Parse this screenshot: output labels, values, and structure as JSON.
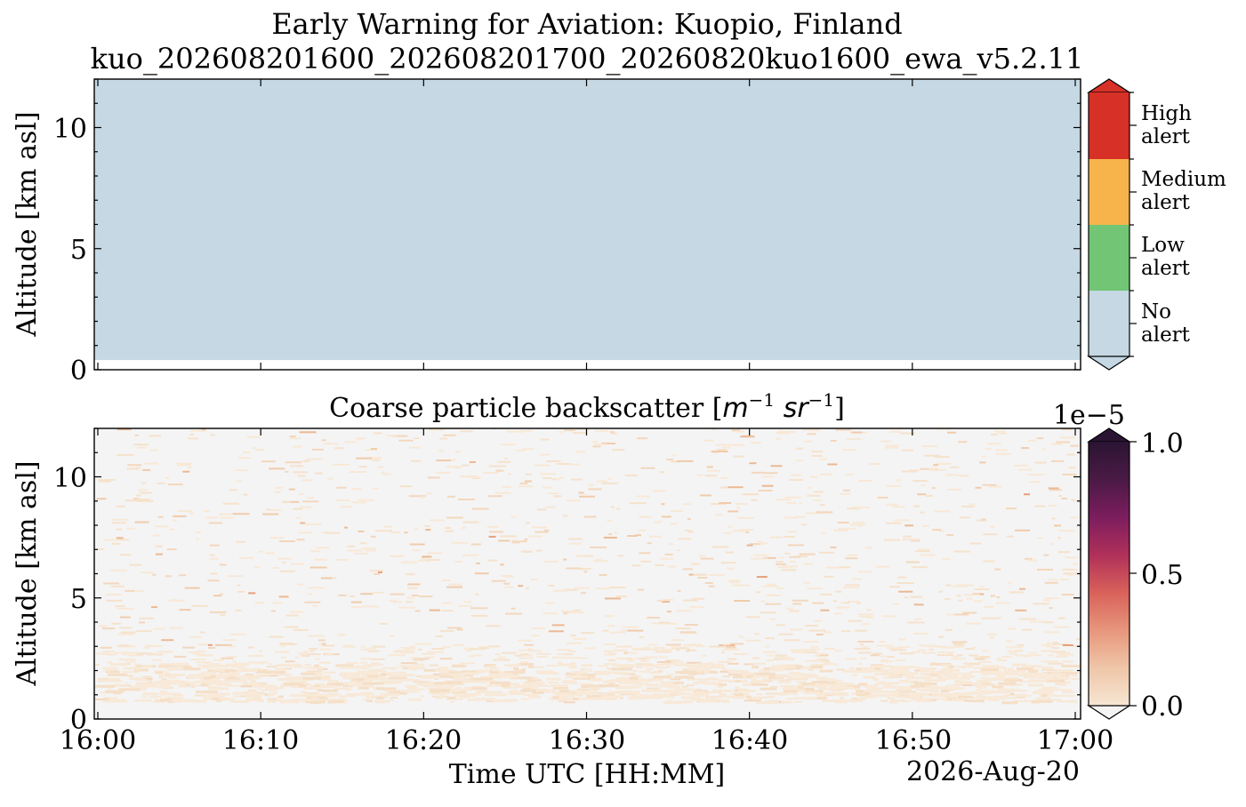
{
  "figure": {
    "title_line1": "Early Warning for Aviation: Kuopio, Finland",
    "title_line2": "kuo_202608201600_202608201700_20260820kuo1600_ewa_v5.2.11"
  },
  "chart_data": [
    {
      "type": "heatmap",
      "title": "",
      "xlabel": "",
      "ylabel": "Altitude [km asl]",
      "xlim": [
        "16:00",
        "17:00"
      ],
      "ylim": [
        0,
        12
      ],
      "yticks": [
        "0",
        "5",
        "10"
      ],
      "field": "alert level",
      "value": "No alert everywhere above ~0.4 km asl",
      "valid_from_km": 0.4,
      "colorbar": {
        "type": "categorical",
        "levels": [
          {
            "label_line1": "No",
            "label_line2": "alert",
            "color": "#c5d8e3"
          },
          {
            "label_line1": "Low",
            "label_line2": "alert",
            "color": "#72c575"
          },
          {
            "label_line1": "Medium",
            "label_line2": "alert",
            "color": "#f6b44b"
          },
          {
            "label_line1": "High",
            "label_line2": "alert",
            "color": "#d73027"
          }
        ]
      }
    },
    {
      "type": "heatmap",
      "title": "Coarse particle backscatter [m⁻¹ sr⁻¹]",
      "title_parts": {
        "prefix": "Coarse particle backscatter [",
        "m": "m",
        "m_exp": "−1",
        "sr": "sr",
        "sr_exp": "−1",
        "suffix": "]"
      },
      "xlabel": "Time UTC [HH:MM]",
      "date_label": "2026-Aug-20",
      "ylabel": "Altitude [km asl]",
      "xticks": [
        "16:00",
        "16:10",
        "16:20",
        "16:30",
        "16:40",
        "16:50",
        "17:00"
      ],
      "yticks": [
        "0",
        "5",
        "10"
      ],
      "ylim": [
        0,
        12
      ],
      "valid_from_km": 0.65,
      "background_color": "#f4f4f4",
      "description_values": "mostly near 0 with sparse weak returns (~0.05–0.25e-5); denser faint returns below ~3 km",
      "colorbar": {
        "type": "continuous",
        "colormap": "rocket_r",
        "vmin": 0.0,
        "vmax": 1.0,
        "multiplier": "1e−5",
        "ticks": [
          "0.0",
          "0.5",
          "1.0"
        ],
        "stops": [
          "#f6e6d3",
          "#efc6a8",
          "#e7967c",
          "#d9615a",
          "#b0305a",
          "#7c1d5e",
          "#4a1a45",
          "#2b1433"
        ]
      }
    }
  ]
}
